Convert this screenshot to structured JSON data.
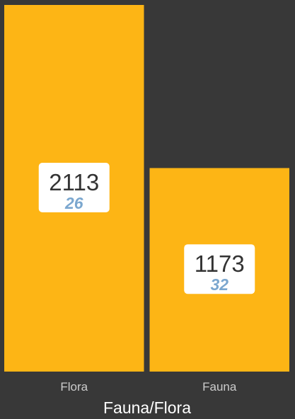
{
  "chart_data": {
    "type": "bar",
    "title": "Fauna/Flora",
    "categories": [
      "Flora",
      "Fauna"
    ],
    "values": [
      2113,
      1173
    ],
    "secondary_values": [
      26,
      32
    ],
    "ylim": [
      0,
      2113
    ],
    "grid": false,
    "legend": "none"
  },
  "colors": {
    "background": "#383838",
    "bar": "#FDB515",
    "label_box": "#FFFFFF",
    "value_text": "#333333",
    "secondary_text": "#7BA7CF",
    "axis_text": "#CCCCCC",
    "title_text": "#FFFFFF"
  }
}
